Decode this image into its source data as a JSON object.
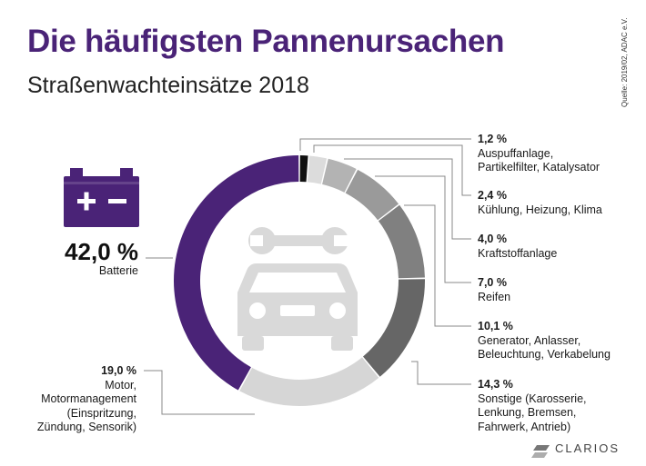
{
  "title": "Die häufigsten Pannenursachen",
  "subtitle": "Straßenwachteinsätze 2018",
  "source": "Quelle: 2019/02, ADAC e.V.",
  "brand": "CLARIOS",
  "colors": {
    "accent": "#4a2377",
    "battery_icon": "#4a2377",
    "car_icon": "#d9d9d9"
  },
  "icons": [
    "battery-icon",
    "car-icon",
    "wrench-icon"
  ],
  "chart_data": {
    "type": "pie",
    "style": "donut",
    "title": "Die häufigsten Pannenursachen",
    "subtitle": "Straßenwachteinsätze 2018",
    "slices": [
      {
        "label": "Batterie",
        "value": 42.0,
        "value_label": "42,0 %",
        "color": "#4a2377"
      },
      {
        "label": "Motor, Motormanagement (Einspritzung, Zündung, Sensorik)",
        "value": 19.0,
        "value_label": "19,0 %",
        "color": "#d6d6d6"
      },
      {
        "label": "Sonstige (Karosserie, Lenkung, Bremsen, Fahrwerk, Antrieb)",
        "value": 14.3,
        "value_label": "14,3 %",
        "color": "#666666"
      },
      {
        "label": "Generator, Anlasser, Beleuchtung, Verkabelung",
        "value": 10.1,
        "value_label": "10,1 %",
        "color": "#808080"
      },
      {
        "label": "Reifen",
        "value": 7.0,
        "value_label": "7,0 %",
        "color": "#9a9a9a"
      },
      {
        "label": "Kraftstoffanlage",
        "value": 4.0,
        "value_label": "4,0 %",
        "color": "#b3b3b3"
      },
      {
        "label": "Kühlung, Heizung, Klima",
        "value": 2.4,
        "value_label": "2,4 %",
        "color": "#dcdcdc"
      },
      {
        "label": "Auspuffanlage, Partikelfilter, Katalysator",
        "value": 1.2,
        "value_label": "1,2 %",
        "color": "#111111"
      }
    ]
  },
  "labels": {
    "auspuff": {
      "pct": "1,2 %",
      "lines": [
        "Auspuffanlage,",
        "Partikelfilter, Katalysator"
      ]
    },
    "kuehlung": {
      "pct": "2,4 %",
      "lines": [
        "Kühlung, Heizung, Klima"
      ]
    },
    "kraftstoff": {
      "pct": "4,0 %",
      "lines": [
        "Kraftstoffanlage"
      ]
    },
    "reifen": {
      "pct": "7,0 %",
      "lines": [
        "Reifen"
      ]
    },
    "generator": {
      "pct": "10,1 %",
      "lines": [
        "Generator, Anlasser,",
        "Beleuchtung, Verkabelung"
      ]
    },
    "sonstige": {
      "pct": "14,3 %",
      "lines": [
        "Sonstige (Karosserie,",
        "Lenkung, Bremsen,",
        "Fahrwerk, Antrieb)"
      ]
    },
    "motor": {
      "pct": "19,0 %",
      "lines": [
        "Motor,",
        "Motormanagement",
        "(Einspritzung,",
        "Zündung, Sensorik)"
      ]
    },
    "batterie": {
      "pct": "42,0 %",
      "lines": [
        "Batterie"
      ]
    }
  }
}
